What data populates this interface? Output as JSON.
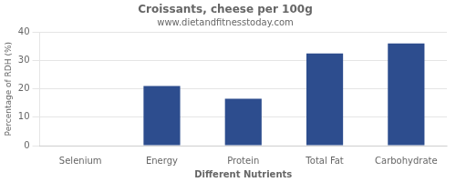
{
  "chart_data": {
    "type": "bar",
    "title": "Croissants, cheese per 100g",
    "subtitle": "www.dietandfitnesstoday.com",
    "xlabel": "Different Nutrients",
    "ylabel": "Percentage of RDH (%)",
    "categories": [
      "Selenium",
      "Energy",
      "Protein",
      "Total Fat",
      "Carbohydrate"
    ],
    "values": [
      0,
      21,
      16.5,
      32.5,
      36
    ],
    "color": "#2d4d8e",
    "ylim": [
      0,
      40
    ],
    "yticks": [
      0,
      10,
      20,
      30,
      40
    ],
    "grid": true
  }
}
